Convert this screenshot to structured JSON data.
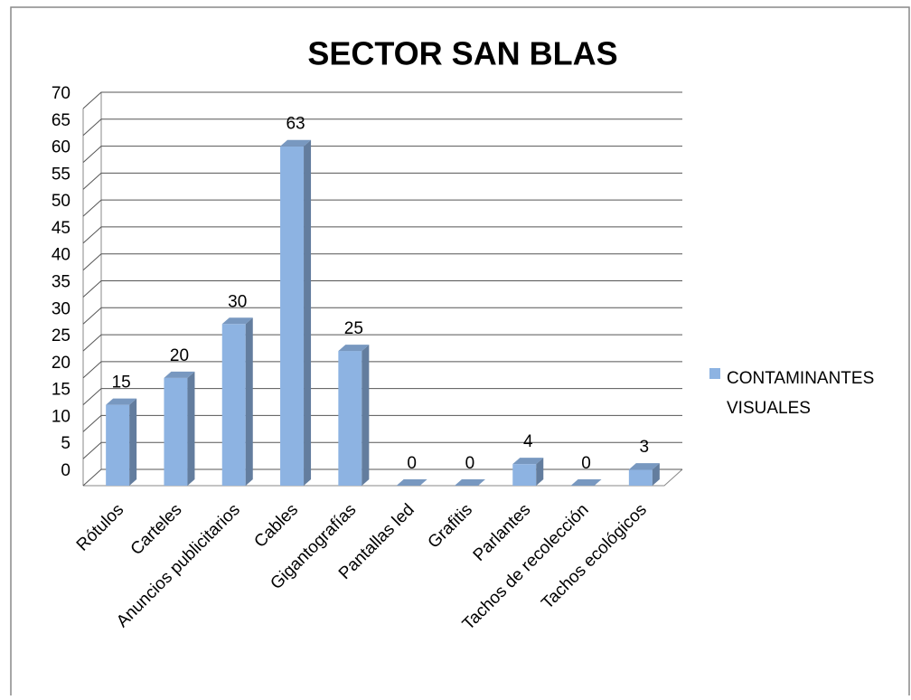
{
  "chart_data": {
    "type": "bar3d",
    "title": "SECTOR SAN BLAS",
    "categories": [
      "Rótulos",
      "Carteles",
      "Anuncios publicitarios",
      "Cables",
      "Gigantografías",
      "Pantallas led",
      "Grafitis",
      "Parlantes",
      "Tachos de recolección",
      "Tachos ecológicos"
    ],
    "series": [
      {
        "name": "CONTAMINANTES VISUALES",
        "color": "#8db3e2",
        "values": [
          15,
          20,
          30,
          63,
          25,
          0,
          0,
          4,
          0,
          3
        ]
      }
    ],
    "ylim": [
      0,
      70
    ],
    "yticks": [
      0,
      5,
      10,
      15,
      20,
      25,
      30,
      35,
      40,
      45,
      50,
      55,
      60,
      65,
      70
    ],
    "grid": true,
    "legend": "right"
  }
}
